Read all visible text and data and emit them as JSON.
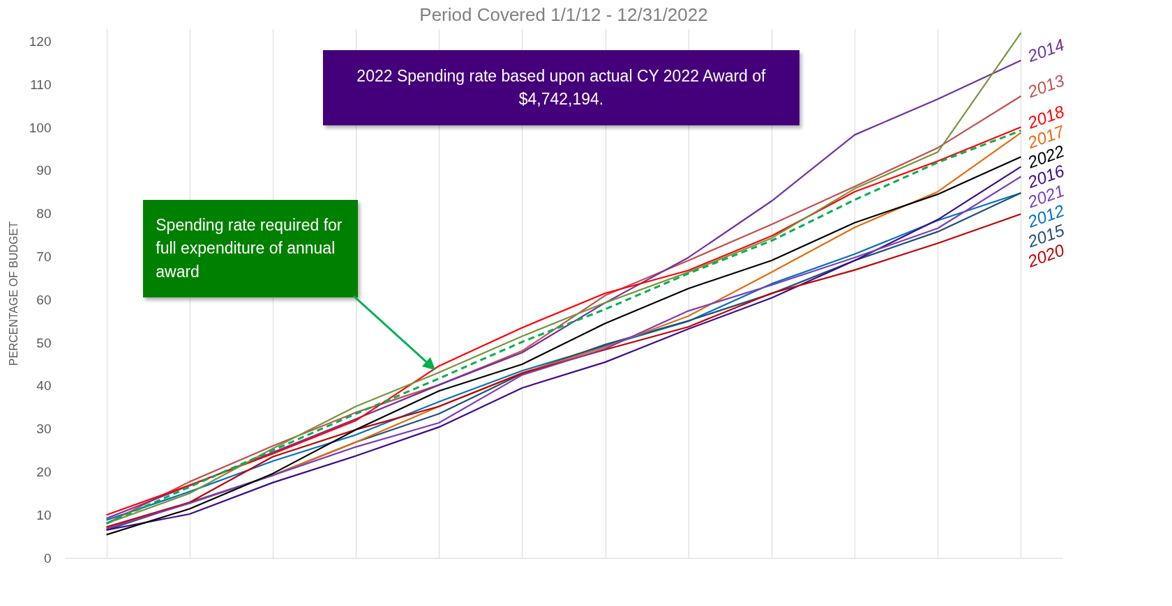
{
  "chart_data": {
    "type": "line",
    "title": "Period Covered 1/1/12 - 12/31/2022",
    "ylabel": "PERCENTAGE OF BUDGET",
    "categories": [
      null,
      null,
      null,
      null,
      null,
      null,
      null,
      null,
      null,
      null,
      null,
      null
    ],
    "ylim": [
      0,
      123
    ],
    "yticks": [
      0,
      10,
      20,
      30,
      40,
      50,
      60,
      70,
      80,
      90,
      100,
      110,
      120
    ],
    "grid": "x",
    "marker": "none",
    "annotations": [
      "2022 Spending rate based upon actual CY 2022 Award of $4,742,194.",
      "Spending rate required for full expenditure of annual award"
    ],
    "series": [
      {
        "name": "2012",
        "color": "#0070c0",
        "values": [
          8.8,
          15.4,
          22.5,
          28.6,
          36.3,
          43.5,
          49.3,
          55,
          63.7,
          70.6,
          78.4,
          84.8
        ]
      },
      {
        "name": "2013",
        "color": "#c0504d",
        "values": [
          8,
          17.7,
          26,
          33.8,
          40.2,
          48.1,
          61,
          69.1,
          77.5,
          86.3,
          95.3,
          107.3
        ]
      },
      {
        "name": "2014",
        "color": "#7030a0",
        "values": [
          9.2,
          16.8,
          24.5,
          32.3,
          40.2,
          47.7,
          59.3,
          69.8,
          82.9,
          98.3,
          106.6,
          115.6
        ]
      },
      {
        "name": "2015",
        "color": "#1f4e79",
        "values": [
          6.5,
          12.9,
          19.2,
          26.9,
          33.5,
          42.8,
          49.6,
          55.1,
          61.4,
          69.1,
          75.8,
          84.8
        ]
      },
      {
        "name": "2016",
        "color": "#3c0a8c",
        "values": [
          6.5,
          10.2,
          17.5,
          23.7,
          30.4,
          39.5,
          45.5,
          53.2,
          60.4,
          69.1,
          78.6,
          90.9
        ]
      },
      {
        "name": "2017",
        "color": "#e46c0a",
        "values": [
          7,
          12.7,
          19.2,
          26.9,
          35.2,
          43,
          49,
          56.2,
          66.4,
          76.8,
          85.1,
          98.8
        ]
      },
      {
        "name": "2018",
        "color": "#ff0000",
        "values": [
          10,
          16.9,
          24.2,
          31.9,
          44.6,
          53.5,
          61.5,
          66.8,
          74.8,
          85.1,
          92.2,
          100.1
        ]
      },
      {
        "color": "#77933c",
        "values": [
          8,
          15,
          25.4,
          35.2,
          43.1,
          51.5,
          59.3,
          66.4,
          74.3,
          85.8,
          94.3,
          122
        ]
      },
      {
        "name": "2020",
        "color": "#c00000",
        "values": [
          7.2,
          12.9,
          23.5,
          29.8,
          35.2,
          42.9,
          48.4,
          53.7,
          61.5,
          66.9,
          73.1,
          79.9
        ]
      },
      {
        "name": "2021",
        "color": "#7a3db8",
        "values": [
          6.8,
          12.7,
          19.2,
          25.8,
          31.4,
          42.5,
          48.6,
          57.4,
          63.4,
          69.8,
          76.6,
          88.6
        ]
      },
      {
        "name": "2022",
        "color": "#000000",
        "values": [
          5.4,
          11.4,
          19.6,
          29.8,
          38.8,
          45,
          54.5,
          62.6,
          69.1,
          77.9,
          84.5,
          93.2
        ]
      },
      {
        "color": "#00b050",
        "line_style": "dashed",
        "values": [
          8,
          16.5,
          25,
          33.5,
          41.7,
          50.2,
          57.8,
          66.1,
          73.7,
          83.2,
          91.9,
          99.3
        ]
      }
    ]
  }
}
